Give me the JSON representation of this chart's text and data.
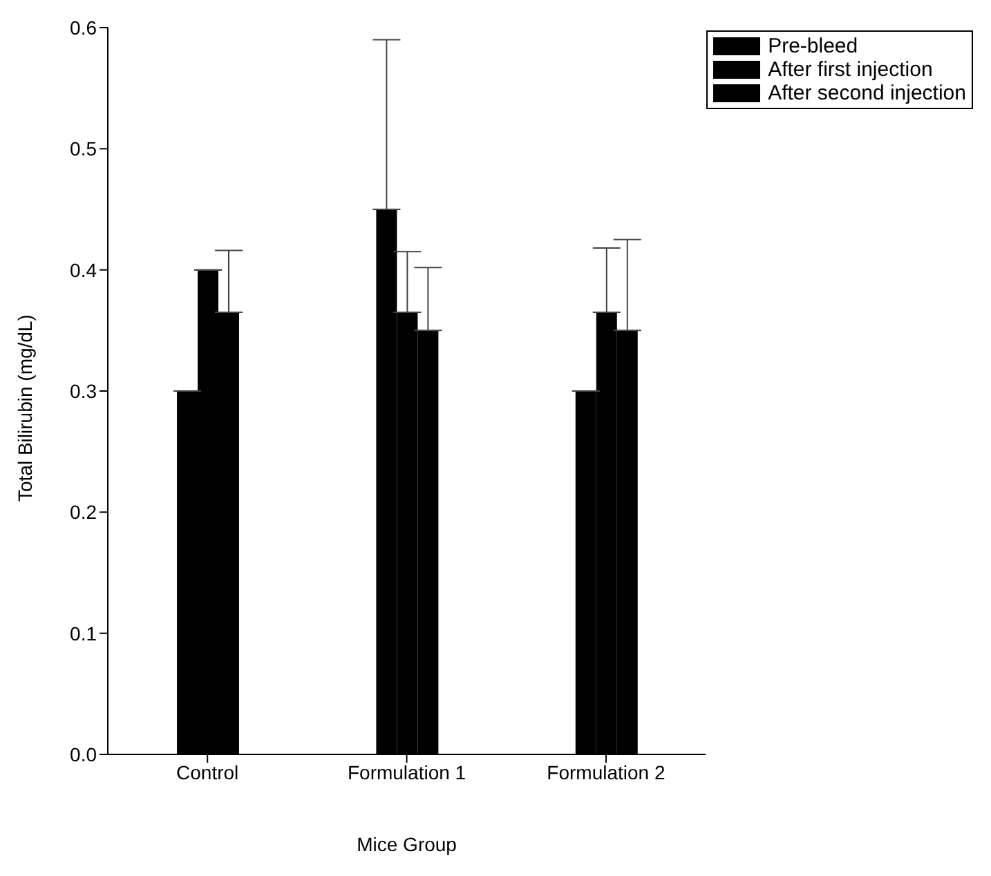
{
  "chart_data": {
    "type": "bar",
    "xlabel": "Mice Group",
    "ylabel": "Total Bilirubin (mg/dL)",
    "categories": [
      "Control",
      "Formulation 1",
      "Formulation 2"
    ],
    "series": [
      {
        "name": "Pre-bleed",
        "color": "#000000",
        "values": [
          0.3,
          0.45,
          0.3
        ],
        "errors": [
          null,
          [
            0.45,
            0.59
          ],
          null
        ]
      },
      {
        "name": "After first injection",
        "color": "#000000",
        "values": [
          0.4,
          0.365,
          0.365
        ],
        "errors": [
          null,
          [
            0.365,
            0.415
          ],
          [
            0.365,
            0.418
          ]
        ]
      },
      {
        "name": "After second injection",
        "color": "#000000",
        "values": [
          0.365,
          0.35,
          0.35
        ],
        "errors": [
          [
            0.365,
            0.416
          ],
          [
            0.35,
            0.402
          ],
          [
            0.35,
            0.425
          ]
        ]
      }
    ],
    "ylim": [
      0,
      0.6
    ],
    "yticks": [
      {
        "value": 0,
        "label": "0.0"
      },
      {
        "value": 0.1,
        "label": "0.1"
      },
      {
        "value": 0.2,
        "label": "0.2"
      },
      {
        "value": 0.3,
        "label": "0.3"
      },
      {
        "value": 0.4,
        "label": "0.4"
      },
      {
        "value": 0.5,
        "label": "0.5"
      },
      {
        "value": 0.6,
        "label": "0.6"
      }
    ],
    "grid": false,
    "legend": "top right"
  }
}
